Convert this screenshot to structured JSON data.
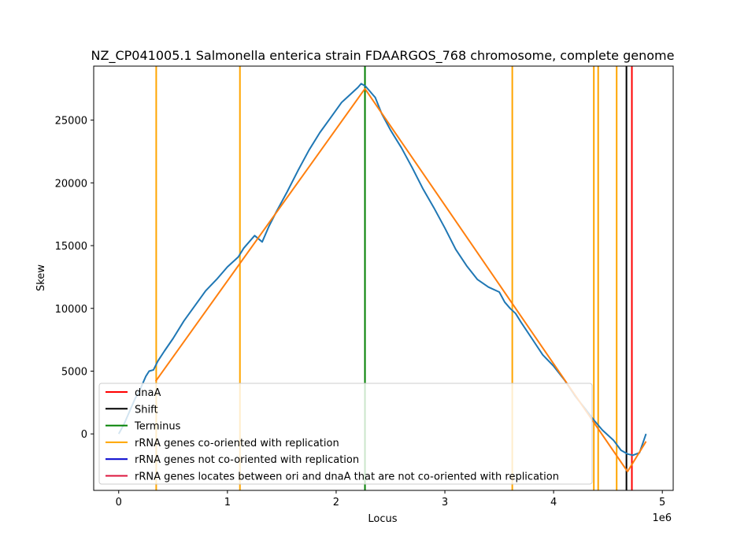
{
  "chart_data": {
    "type": "line",
    "title": "NZ_CP041005.1 Salmonella enterica strain FDAARGOS_768 chromosome, complete genome",
    "xlabel": "Locus",
    "ylabel": "Skew",
    "x_offset_label": "1e6",
    "x_scale": 1000000,
    "xlim": [
      -230000,
      5100000
    ],
    "ylim": [
      -4500,
      29300
    ],
    "x_ticks": [
      0,
      1000000,
      2000000,
      3000000,
      4000000,
      5000000
    ],
    "x_tick_labels": [
      "0",
      "1",
      "2",
      "3",
      "4",
      "5"
    ],
    "y_ticks": [
      0,
      5000,
      10000,
      15000,
      20000,
      25000
    ],
    "y_tick_labels": [
      "0",
      "5000",
      "10000",
      "15000",
      "20000",
      "25000"
    ],
    "legend_position": "lower-left",
    "series": [
      {
        "key": "skew",
        "color": "#1f77b4",
        "x": [
          0,
          50000,
          100000,
          150000,
          200000,
          250000,
          280000,
          320000,
          360000,
          420000,
          500000,
          600000,
          700000,
          800000,
          900000,
          1000000,
          1100000,
          1150000,
          1250000,
          1320000,
          1380000,
          1450000,
          1550000,
          1650000,
          1750000,
          1850000,
          1950000,
          2050000,
          2150000,
          2200000,
          2230000,
          2270000,
          2310000,
          2360000,
          2420000,
          2500000,
          2600000,
          2700000,
          2800000,
          2900000,
          3000000,
          3100000,
          3200000,
          3300000,
          3400000,
          3500000,
          3550000,
          3600000,
          3650000,
          3700000,
          3800000,
          3900000,
          4000000,
          4100000,
          4200000,
          4300000,
          4380000,
          4450000,
          4550000,
          4620000,
          4680000,
          4730000,
          4790000,
          4850000
        ],
        "y": [
          0,
          800,
          1800,
          2800,
          3600,
          4600,
          5000,
          5100,
          5800,
          6600,
          7600,
          9000,
          10200,
          11400,
          12300,
          13300,
          14100,
          14800,
          15800,
          15300,
          16500,
          17700,
          19300,
          21000,
          22600,
          24000,
          25200,
          26400,
          27200,
          27600,
          27900,
          27700,
          27300,
          26800,
          25500,
          24200,
          22800,
          21200,
          19500,
          18000,
          16400,
          14700,
          13400,
          12300,
          11700,
          11300,
          10500,
          10000,
          9600,
          8900,
          7600,
          6300,
          5400,
          4300,
          3000,
          1900,
          1000,
          300,
          -500,
          -1300,
          -1600,
          -1700,
          -1500,
          0
        ]
      },
      {
        "key": "fit",
        "color": "#ff7f0e",
        "x": [
          340000,
          2265000,
          4680000,
          4850000
        ],
        "y": [
          4200,
          27500,
          -3000,
          -600
        ]
      }
    ],
    "vlines": [
      {
        "x": 345000,
        "color": "#ffa500",
        "kind": "rrna_co"
      },
      {
        "x": 1115000,
        "color": "#ffa500",
        "kind": "rrna_co"
      },
      {
        "x": 3620000,
        "color": "#ffa500",
        "kind": "rrna_co"
      },
      {
        "x": 4370000,
        "color": "#ffa500",
        "kind": "rrna_co"
      },
      {
        "x": 4410000,
        "color": "#ffa500",
        "kind": "rrna_co"
      },
      {
        "x": 4580000,
        "color": "#ffa500",
        "kind": "rrna_co"
      },
      {
        "x": 2265000,
        "color": "#008000",
        "kind": "terminus"
      },
      {
        "x": 4670000,
        "color": "#000000",
        "kind": "shift"
      },
      {
        "x": 4720000,
        "color": "#ff0000",
        "kind": "dnaa"
      }
    ],
    "legend": [
      {
        "label": "dnaA",
        "color": "#ff0000"
      },
      {
        "label": "Shift",
        "color": "#000000"
      },
      {
        "label": "Terminus",
        "color": "#008000"
      },
      {
        "label": "rRNA genes co-oriented with replication",
        "color": "#ffa500"
      },
      {
        "label": "rRNA genes not co-oriented with replication",
        "color": "#0000cd"
      },
      {
        "label": "rRNA genes locates between ori and dnaA that are not co-oriented with replication",
        "color": "#dc143c"
      }
    ]
  }
}
